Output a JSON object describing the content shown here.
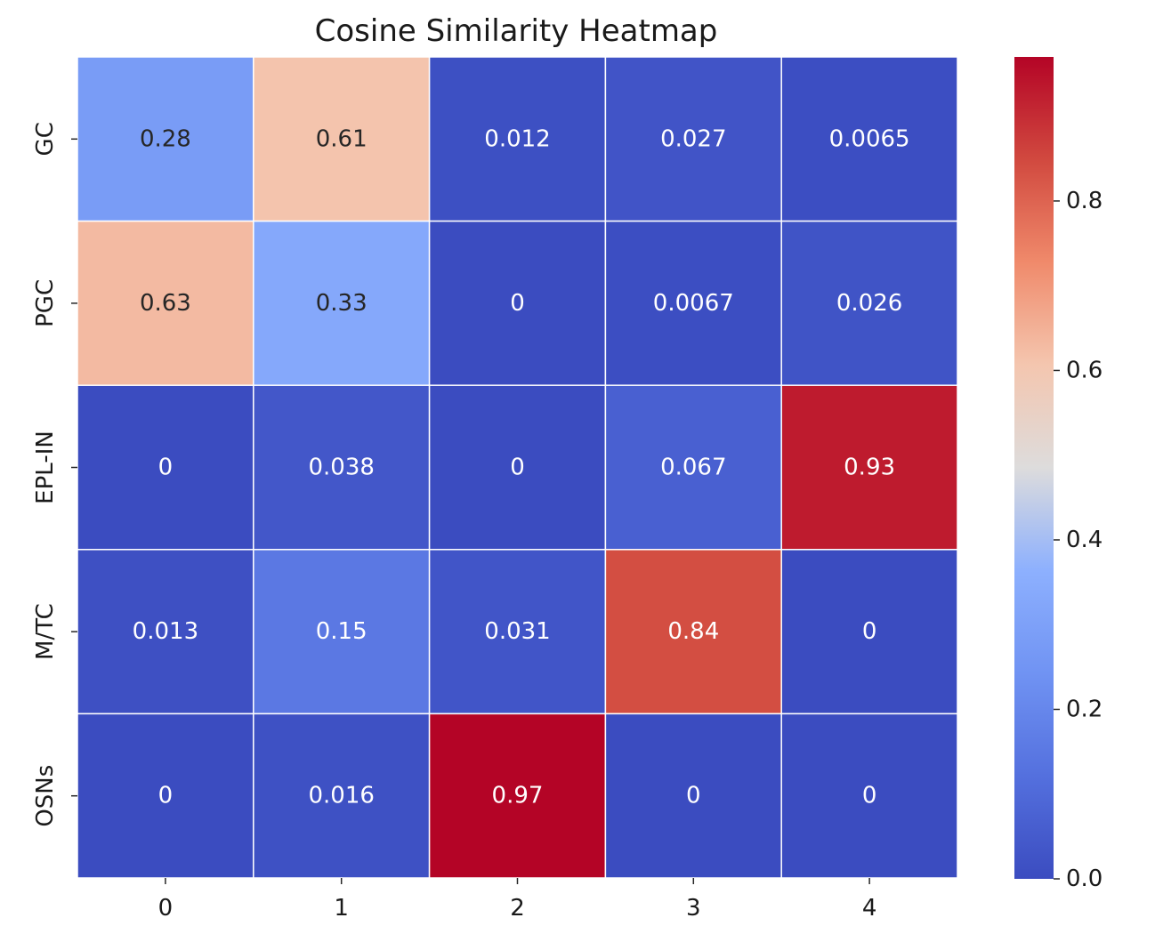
{
  "chart_data": {
    "type": "heatmap",
    "title": "Cosine Similarity Heatmap",
    "xlabel": "",
    "ylabel": "",
    "x_categories": [
      "0",
      "1",
      "2",
      "3",
      "4"
    ],
    "y_categories": [
      "GC",
      "PGC",
      "EPL-IN",
      "M/TC",
      "OSNs"
    ],
    "values": [
      [
        0.28,
        0.61,
        0.012,
        0.027,
        0.0065
      ],
      [
        0.63,
        0.33,
        0,
        0.0067,
        0.026
      ],
      [
        0,
        0.038,
        0,
        0.067,
        0.93
      ],
      [
        0.013,
        0.15,
        0.031,
        0.84,
        0
      ],
      [
        0,
        0.016,
        0.97,
        0,
        0
      ]
    ],
    "cell_labels": [
      [
        "0.28",
        "0.61",
        "0.012",
        "0.027",
        "0.0065"
      ],
      [
        "0.63",
        "0.33",
        "0",
        "0.0067",
        "0.026"
      ],
      [
        "0",
        "0.038",
        "0",
        "0.067",
        "0.93"
      ],
      [
        "0.013",
        "0.15",
        "0.031",
        "0.84",
        "0"
      ],
      [
        "0",
        "0.016",
        "0.97",
        "0",
        "0"
      ]
    ],
    "colormap": "coolwarm",
    "colorbar": {
      "range": [
        0.0,
        0.97
      ],
      "ticks": [
        0.0,
        0.2,
        0.4,
        0.6,
        0.8
      ],
      "tick_labels": [
        "0.0",
        "0.2",
        "0.4",
        "0.6",
        "0.8"
      ]
    },
    "annotation_colors": {
      "light": "#ffffff",
      "dark": "#262626"
    }
  }
}
